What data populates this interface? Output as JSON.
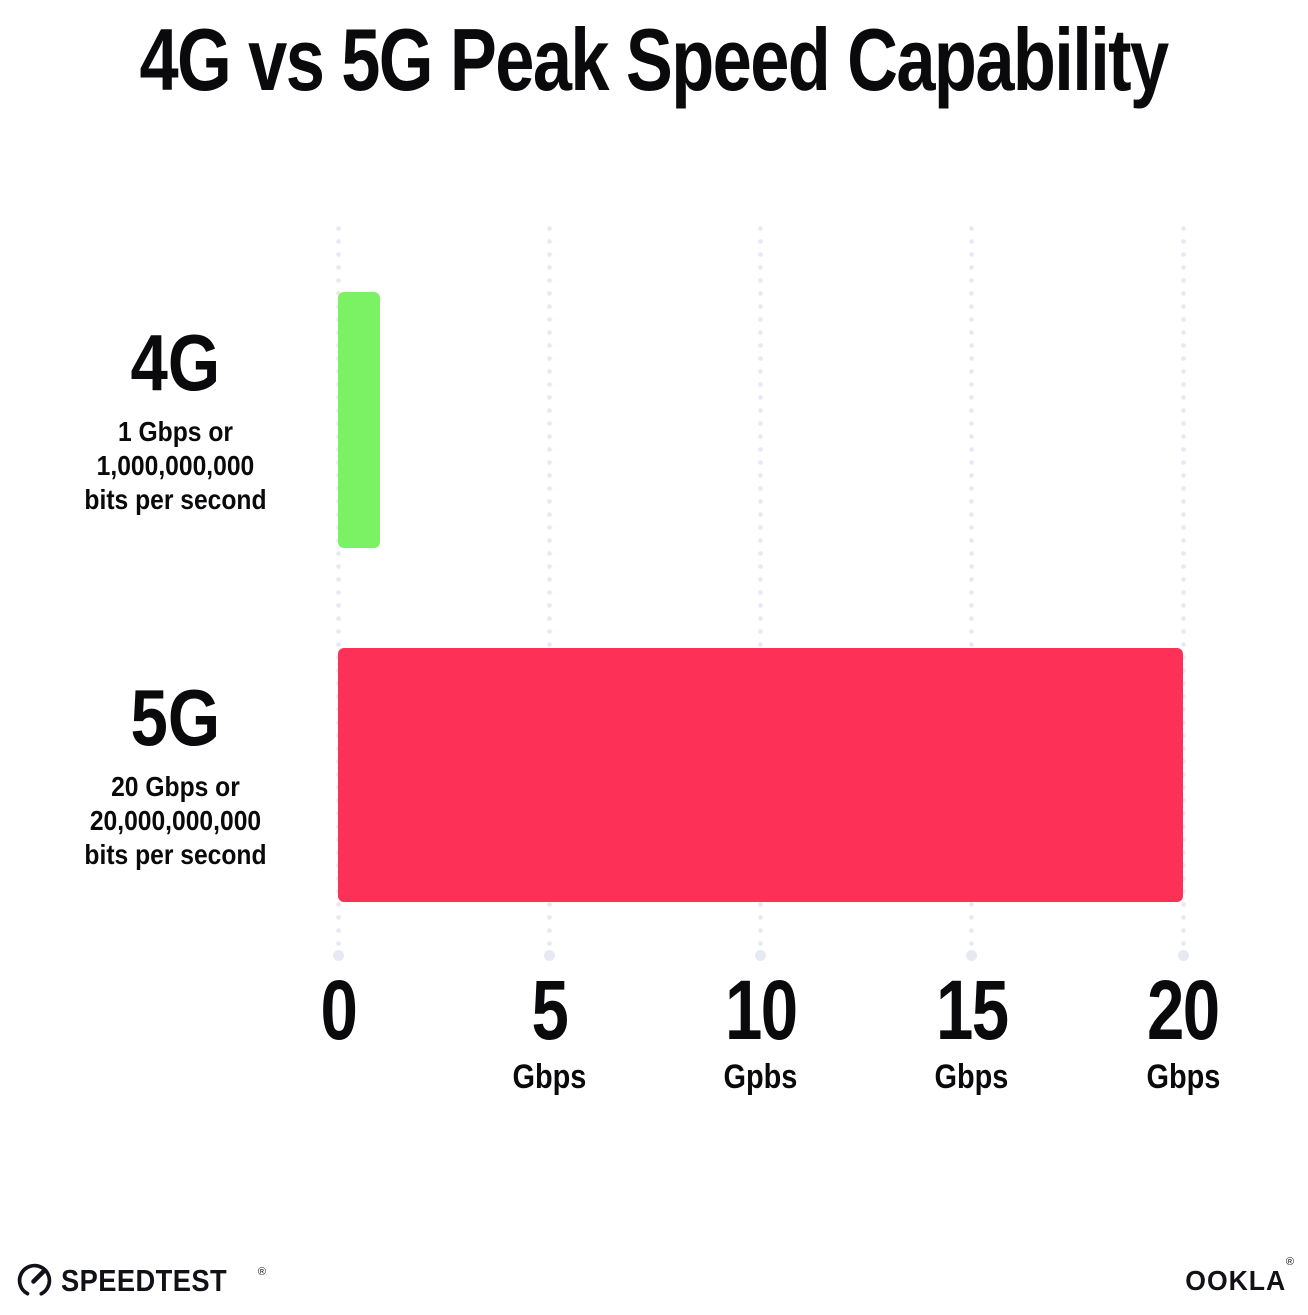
{
  "title": "4G vs 5G Peak Speed Capability",
  "chart_data": {
    "type": "bar",
    "orientation": "horizontal",
    "title": "4G vs 5G Peak Speed Capability",
    "categories": [
      "4G",
      "5G"
    ],
    "values": [
      1,
      20
    ],
    "bars": [
      {
        "category": "4G",
        "value_gbps": 1,
        "color": "#7BF263",
        "label": "4G",
        "sublabel_lines": [
          "1 Gbps or",
          "1,000,000,000",
          "bits per second"
        ]
      },
      {
        "category": "5G",
        "value_gbps": 20,
        "color": "#FD3158",
        "label": "5G",
        "sublabel_lines": [
          "20 Gbps or",
          "20,000,000,000",
          "bits per second"
        ]
      }
    ],
    "xlabel": "",
    "ylabel": "",
    "xlim": [
      0,
      20
    ],
    "x_ticks": [
      {
        "value": 0,
        "label": "0",
        "unit": ""
      },
      {
        "value": 5,
        "label": "5",
        "unit": "Gbps"
      },
      {
        "value": 10,
        "label": "10",
        "unit": "Gpbs"
      },
      {
        "value": 15,
        "label": "15",
        "unit": "Gbps"
      },
      {
        "value": 20,
        "label": "20",
        "unit": "Gbps"
      }
    ],
    "grid": "dotted-vertical",
    "grid_color": "#E7E9F2",
    "legend": "none"
  },
  "footer": {
    "speedtest": {
      "label": "SPEEDTEST",
      "reg": "®"
    },
    "ookla": {
      "label": "OOKLA",
      "reg": "®"
    }
  },
  "colors": {
    "background": "#FFFFFF",
    "text": "#0A0A0C",
    "bar_4g": "#7BF263",
    "bar_5g": "#FD3158",
    "grid_dot": "#E7E9F2"
  }
}
